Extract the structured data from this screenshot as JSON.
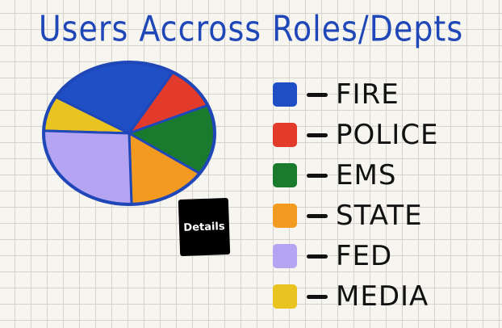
{
  "title": "Users Accross Roles/Depts",
  "chart_data": {
    "type": "pie",
    "title": "Users Accross Roles/Depts",
    "legend_position": "right",
    "categories": [
      "FIRE",
      "POLICE",
      "EMS",
      "STATE",
      "FED",
      "MEDIA"
    ],
    "values": [
      25,
      10,
      16,
      15,
      26,
      8
    ],
    "colors": [
      "#1f4fc4",
      "#e23b2c",
      "#1a7a2e",
      "#f39a21",
      "#b4a4f2",
      "#e9c421"
    ]
  },
  "details_button": {
    "label": "Details"
  }
}
